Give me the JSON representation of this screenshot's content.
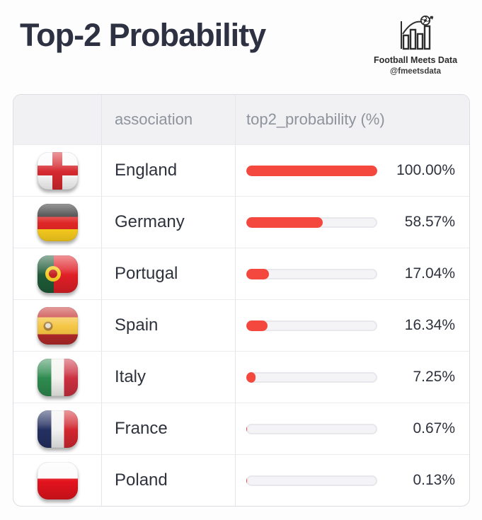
{
  "title": "Top-2 Probability",
  "brand": {
    "name": "Football Meets Data",
    "handle": "@fmeetsdata",
    "icon": "bar-chart-with-football-logo"
  },
  "colors": {
    "bar_fill": "#f4483e",
    "bar_track": "#f4f4f7",
    "track_ring": "#e7e7ec",
    "header_bg": "#f1f1f4",
    "border": "#dcdce2",
    "row_divider": "#ececf0",
    "col_divider": "#e6e6ea",
    "title": "#2d3142",
    "text": "#2e323d",
    "header_text": "#8e939c",
    "background": "#fdfdfd"
  },
  "table": {
    "header": {
      "flag": "",
      "association": "association",
      "probability": "top2_probability (%)"
    },
    "bar_max": 100,
    "rows": [
      {
        "association": "England",
        "value": 100.0,
        "label": "100.00%",
        "flag": {
          "name": "england",
          "type": "cross",
          "bg": "#fbfbfb",
          "cross": "#d5292f"
        }
      },
      {
        "association": "Germany",
        "value": 58.57,
        "label": "58.57%",
        "flag": {
          "name": "germany",
          "type": "stripes",
          "dir": "horizontal",
          "stripes": [
            {
              "color": "#272727",
              "size": 35
            },
            {
              "color": "#e02626",
              "size": 33
            },
            {
              "color": "#ffd21e",
              "size": 32
            }
          ]
        }
      },
      {
        "association": "Portugal",
        "value": 17.04,
        "label": "17.04%",
        "flag": {
          "name": "portugal",
          "type": "stripes",
          "dir": "vertical",
          "stripes": [
            {
              "color": "#1e5b38",
              "size": 40
            },
            {
              "color": "#e01f26",
              "size": 60
            }
          ],
          "emblem": {
            "x": 40,
            "y": 50,
            "size": 22,
            "color": "#f3cf2a",
            "inner": "#c42323"
          }
        }
      },
      {
        "association": "Spain",
        "value": 16.34,
        "label": "16.34%",
        "flag": {
          "name": "spain",
          "type": "stripes",
          "dir": "horizontal",
          "stripes": [
            {
              "color": "#c52f2f",
              "size": 27
            },
            {
              "color": "#f5c644",
              "size": 46
            },
            {
              "color": "#b52a2a",
              "size": 27
            }
          ],
          "emblem": {
            "x": 27,
            "y": 51,
            "size": 13,
            "color": "#a9813f",
            "inner": "#e6e0d2"
          }
        }
      },
      {
        "association": "Italy",
        "value": 7.25,
        "label": "7.25%",
        "flag": {
          "name": "italy",
          "type": "stripes",
          "dir": "vertical",
          "stripes": [
            {
              "color": "#2e8b4f",
              "size": 34
            },
            {
              "color": "#f3f3ef",
              "size": 32
            },
            {
              "color": "#cb3040",
              "size": 34
            }
          ]
        }
      },
      {
        "association": "France",
        "value": 0.67,
        "label": "0.67%",
        "flag": {
          "name": "france",
          "type": "stripes",
          "dir": "vertical",
          "stripes": [
            {
              "color": "#243061",
              "size": 34
            },
            {
              "color": "#f2f2f2",
              "size": 32
            },
            {
              "color": "#d22730",
              "size": 34
            }
          ]
        }
      },
      {
        "association": "Poland",
        "value": 0.13,
        "label": "0.13%",
        "flag": {
          "name": "poland",
          "type": "stripes",
          "dir": "horizontal",
          "stripes": [
            {
              "color": "#fbfbfb",
              "size": 44
            },
            {
              "color": "#e3131d",
              "size": 56
            }
          ]
        }
      }
    ]
  },
  "chart_data": {
    "type": "bar",
    "orientation": "horizontal",
    "title": "Top-2 Probability",
    "categories": [
      "England",
      "Germany",
      "Portugal",
      "Spain",
      "Italy",
      "France",
      "Poland"
    ],
    "values": [
      100.0,
      58.57,
      17.04,
      16.34,
      7.25,
      0.67,
      0.13
    ],
    "value_labels": [
      "100.00%",
      "58.57%",
      "17.04%",
      "16.34%",
      "7.25%",
      "0.67%",
      "0.13%"
    ],
    "xlim": [
      0,
      100
    ],
    "unit": "%",
    "columns": [
      "association",
      "top2_probability (%)"
    ],
    "bar_color": "#f4483e",
    "legend": false,
    "grid": false
  }
}
